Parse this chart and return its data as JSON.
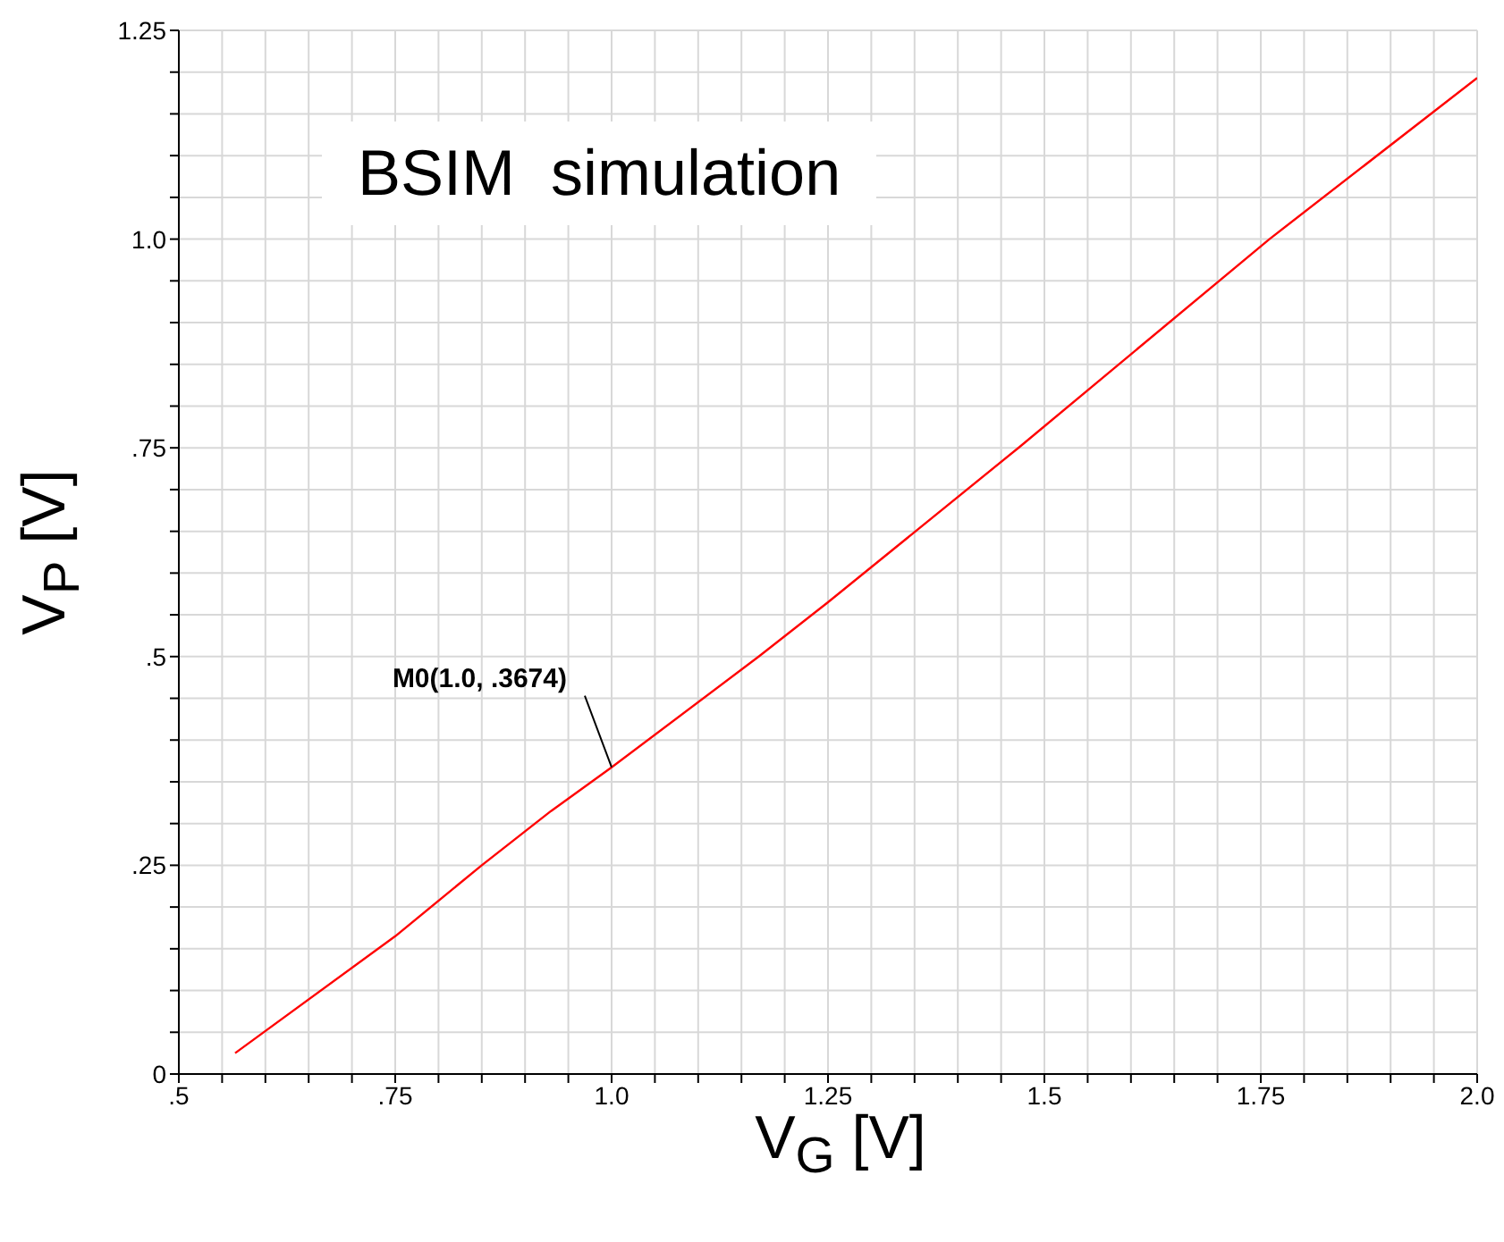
{
  "chart_data": {
    "type": "line",
    "xlabel": "V$_{G}$ [V]",
    "ylabel": "V$_{P}$ [V]",
    "x": [
      0.565,
      0.75,
      0.85,
      0.93,
      1.0,
      1.17,
      1.25,
      1.47,
      1.76,
      2.0
    ],
    "series": [
      {
        "color": "#ff0000",
        "values": [
          0.025,
          0.165,
          0.25,
          0.315,
          0.3674,
          0.5,
          0.565,
          0.75,
          1.0,
          1.193
        ]
      }
    ],
    "xlim": [
      0.5,
      2.0
    ],
    "xticks": [
      {
        "value": 0.5,
        "label": ".5"
      },
      {
        "value": 0.55,
        "label": null
      },
      {
        "value": 0.6,
        "label": null
      },
      {
        "value": 0.65,
        "label": null
      },
      {
        "value": 0.7,
        "label": null
      },
      {
        "value": 0.75,
        "label": ".75"
      },
      {
        "value": 0.8,
        "label": null
      },
      {
        "value": 0.85,
        "label": null
      },
      {
        "value": 0.9,
        "label": null
      },
      {
        "value": 0.95,
        "label": null
      },
      {
        "value": 1.0,
        "label": "1.0"
      },
      {
        "value": 1.05,
        "label": null
      },
      {
        "value": 1.1,
        "label": null
      },
      {
        "value": 1.15,
        "label": null
      },
      {
        "value": 1.2,
        "label": null
      },
      1.25,
      {
        "value": 1.3,
        "label": null
      },
      {
        "value": 1.35,
        "label": null
      },
      {
        "value": 1.4,
        "label": null
      },
      {
        "value": 1.45,
        "label": null
      },
      1.5,
      {
        "value": 1.55,
        "label": null
      },
      {
        "value": 1.6,
        "label": null
      },
      {
        "value": 1.65,
        "label": null
      },
      {
        "value": 1.7,
        "label": null
      },
      1.75,
      {
        "value": 1.8,
        "label": null
      },
      {
        "value": 1.85,
        "label": null
      },
      {
        "value": 1.9,
        "label": null
      },
      {
        "value": 1.95,
        "label": null
      },
      {
        "value": 2.0,
        "label": "2.0"
      }
    ],
    "ylim": [
      0,
      1.25
    ],
    "yticks": [
      0,
      {
        "value": 0.05,
        "label": null
      },
      {
        "value": 0.1,
        "label": null
      },
      {
        "value": 0.15,
        "label": null
      },
      {
        "value": 0.2,
        "label": null
      },
      {
        "value": 0.25,
        "label": ".25"
      },
      {
        "value": 0.3,
        "label": null
      },
      {
        "value": 0.35,
        "label": null
      },
      {
        "value": 0.4,
        "label": null
      },
      {
        "value": 0.45,
        "label": null
      },
      {
        "value": 0.5,
        "label": ".5"
      },
      {
        "value": 0.55,
        "label": null
      },
      {
        "value": 0.6,
        "label": null
      },
      {
        "value": 0.65,
        "label": null
      },
      {
        "value": 0.7,
        "label": null
      },
      {
        "value": 0.75,
        "label": ".75"
      },
      {
        "value": 0.8,
        "label": null
      },
      {
        "value": 0.85,
        "label": null
      },
      {
        "value": 0.9,
        "label": null
      },
      {
        "value": 0.95,
        "label": null
      },
      {
        "value": 1.0,
        "label": "1.0"
      },
      {
        "value": 1.05,
        "label": null
      },
      {
        "value": 1.1,
        "label": null
      },
      {
        "value": 1.15,
        "label": null
      },
      {
        "value": 1.2,
        "label": null
      },
      1.25
    ],
    "grid": true,
    "marker": "none",
    "line_style": "solid",
    "annotations": [
      "BSIM  simulation",
      {
        "text": "M0(1.0, .3674)",
        "x": 1.0,
        "y": 0.3674
      }
    ]
  }
}
